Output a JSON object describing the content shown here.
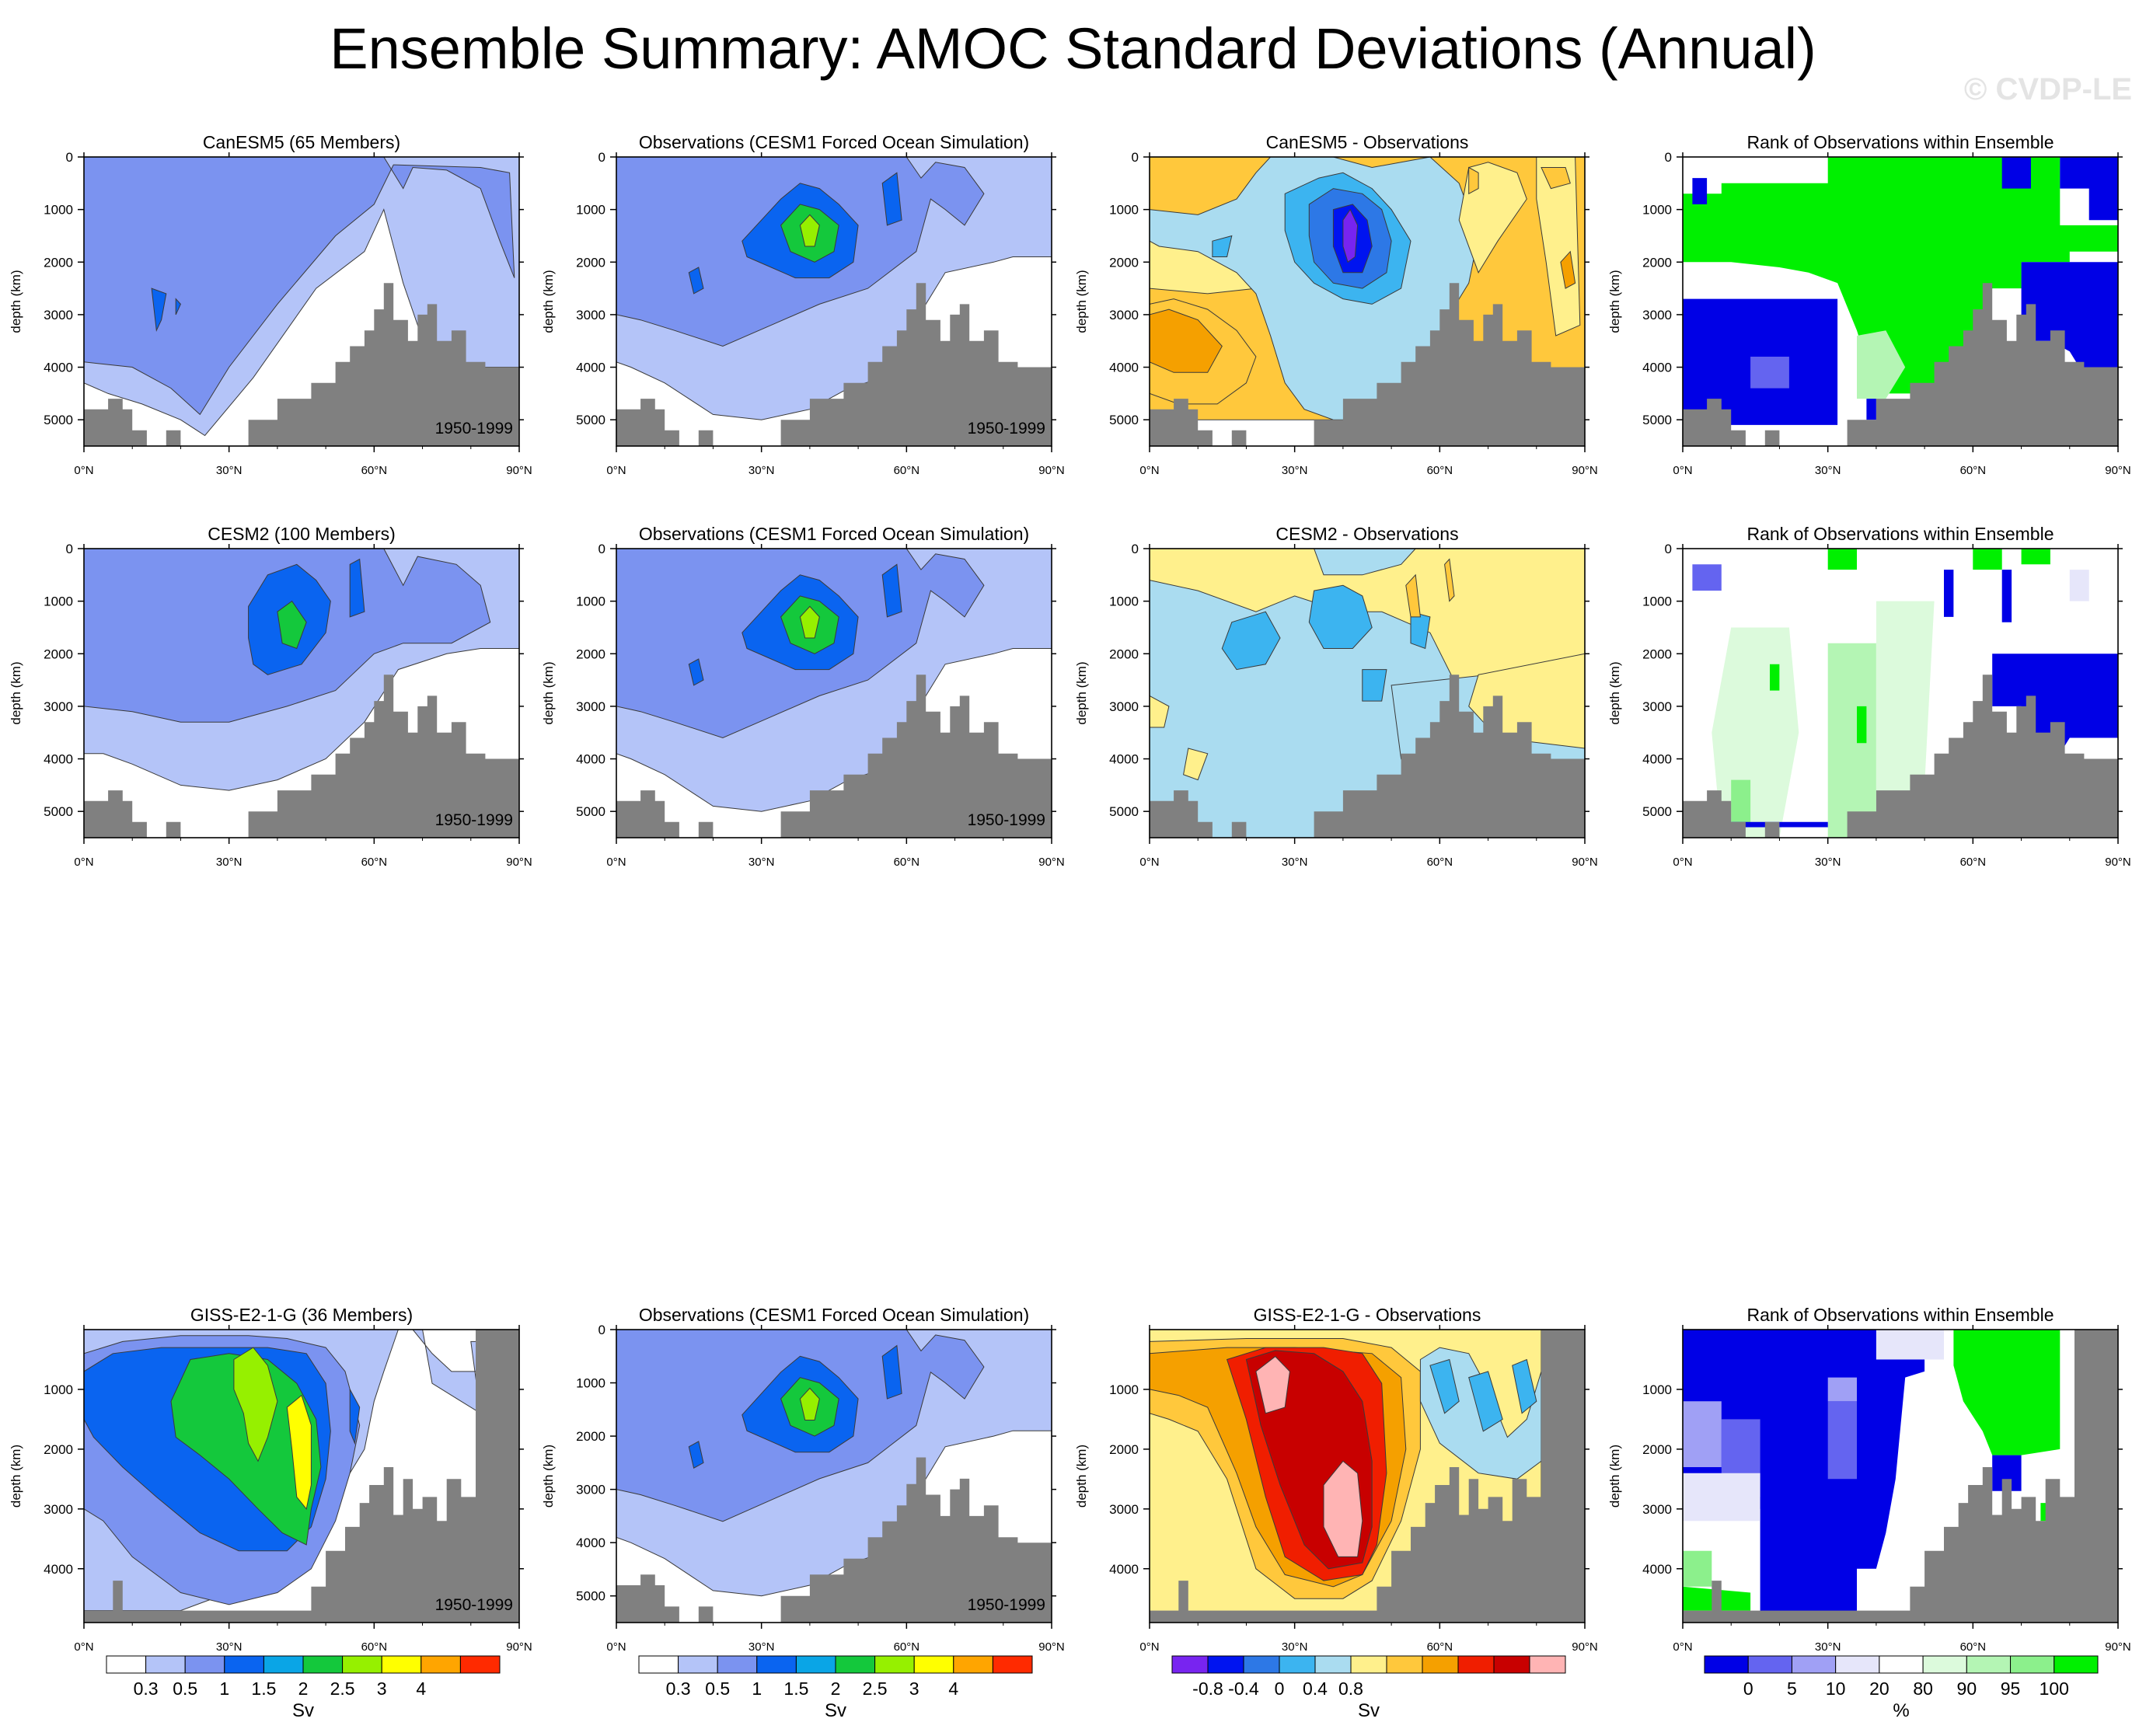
{
  "title": "Ensemble Summary: AMOC Standard Deviations (Annual)",
  "watermark": "© CVDP-LE",
  "axes": {
    "ylabel": "depth (km)",
    "x_range": [
      0,
      90
    ],
    "y_range_deep": [
      0,
      5500
    ],
    "y_range_giss": [
      0,
      4900
    ],
    "x_ticks": [
      0,
      30,
      60,
      90
    ],
    "x_tick_labels": [
      "0°N",
      "30°N",
      "60°N",
      "90°N"
    ],
    "y_ticks_deep": [
      0,
      1000,
      2000,
      3000,
      4000,
      5000
    ],
    "y_tick_labels_deep": [
      "0",
      "1000",
      "2000",
      "3000",
      "4000",
      "5000"
    ],
    "y_ticks_giss": [
      1000,
      2000,
      3000,
      4000
    ],
    "y_tick_labels_giss": [
      "1000",
      "2000",
      "3000",
      "4000"
    ]
  },
  "colors": {
    "sd": [
      "#ffffff",
      "#b4c4f8",
      "#7b93f0",
      "#0a64f0",
      "#0aa5e6",
      "#14c83c",
      "#96f000",
      "#ffff00",
      "#ffa500",
      "#ff2a00"
    ],
    "diff": [
      "#7824f0",
      "#0014f0",
      "#2d78e6",
      "#3cb4f0",
      "#aadcf0",
      "#fff08c",
      "#ffc83c",
      "#f5a000",
      "#f01e00",
      "#c80000",
      "#ffb4b4"
    ],
    "rank": [
      "#0000e6",
      "#6464f0",
      "#a0a0f5",
      "#e6e6fa",
      "#ffffff",
      "#dcfadc",
      "#b4f5b4",
      "#8cf08c",
      "#00f000"
    ],
    "topography": "#808080"
  },
  "chart_data": [
    {
      "type": "heatmap",
      "panel": "r1c1",
      "title": "CanESM5 (65 Members)",
      "period": "1950-1999",
      "variable": "AMOC standard deviation",
      "units": "Sv",
      "xlabel": "",
      "ylabel": "depth (km)",
      "xlim": [
        0,
        90
      ],
      "ylim": [
        5500,
        0
      ]
    },
    {
      "type": "heatmap",
      "panel": "r1c2",
      "title": "Observations (CESM1 Forced Ocean Simulation)",
      "period": "1950-1999",
      "units": "Sv",
      "ylabel": "depth (km)",
      "xlim": [
        0,
        90
      ],
      "ylim": [
        5500,
        0
      ]
    },
    {
      "type": "heatmap",
      "panel": "r1c3",
      "title": "CanESM5 - Observations",
      "units": "Sv",
      "ylabel": "depth (km)",
      "xlim": [
        0,
        90
      ],
      "ylim": [
        5500,
        0
      ]
    },
    {
      "type": "heatmap",
      "panel": "r1c4",
      "title": "Rank of Observations within Ensemble",
      "units": "%",
      "ylabel": "depth (km)",
      "xlim": [
        0,
        90
      ],
      "ylim": [
        5500,
        0
      ]
    },
    {
      "type": "heatmap",
      "panel": "r2c1",
      "title": "CESM2 (100 Members)",
      "period": "1950-1999",
      "units": "Sv",
      "ylabel": "depth (km)",
      "xlim": [
        0,
        90
      ],
      "ylim": [
        5500,
        0
      ]
    },
    {
      "type": "heatmap",
      "panel": "r2c2",
      "title": "Observations (CESM1 Forced Ocean Simulation)",
      "period": "1950-1999",
      "units": "Sv",
      "ylabel": "depth (km)",
      "xlim": [
        0,
        90
      ],
      "ylim": [
        5500,
        0
      ]
    },
    {
      "type": "heatmap",
      "panel": "r2c3",
      "title": "CESM2 - Observations",
      "units": "Sv",
      "ylabel": "depth (km)",
      "xlim": [
        0,
        90
      ],
      "ylim": [
        5500,
        0
      ]
    },
    {
      "type": "heatmap",
      "panel": "r2c4",
      "title": "Rank of Observations within Ensemble",
      "units": "%",
      "ylabel": "depth (km)",
      "xlim": [
        0,
        90
      ],
      "ylim": [
        5500,
        0
      ]
    },
    {
      "type": "heatmap",
      "panel": "r3c1",
      "title": "GISS-E2-1-G (36 Members)",
      "period": "1950-1999",
      "units": "Sv",
      "ylabel": "depth (km)",
      "xlim": [
        0,
        90
      ],
      "ylim": [
        4900,
        0
      ]
    },
    {
      "type": "heatmap",
      "panel": "r3c2",
      "title": "Observations (CESM1 Forced Ocean Simulation)",
      "period": "1950-1999",
      "units": "Sv",
      "ylabel": "depth (km)",
      "xlim": [
        0,
        90
      ],
      "ylim": [
        5500,
        0
      ]
    },
    {
      "type": "heatmap",
      "panel": "r3c3",
      "title": "GISS-E2-1-G - Observations",
      "units": "Sv",
      "ylabel": "depth (km)",
      "xlim": [
        0,
        90
      ],
      "ylim": [
        4900,
        0
      ]
    },
    {
      "type": "heatmap",
      "panel": "r3c4",
      "title": "Rank of Observations within Ensemble",
      "units": "%",
      "ylabel": "depth (km)",
      "xlim": [
        0,
        90
      ],
      "ylim": [
        4900,
        0
      ]
    }
  ],
  "colorbars": [
    {
      "name": "sd-colorbar-1",
      "units": "Sv",
      "levels": [
        0.3,
        0.5,
        1,
        1.5,
        2,
        2.5,
        3,
        4
      ],
      "labels": [
        "0.3",
        "0.5",
        "1",
        "1.5",
        "2",
        "2.5",
        "3",
        "4"
      ],
      "palette": "sd"
    },
    {
      "name": "sd-colorbar-2",
      "units": "Sv",
      "levels": [
        0.3,
        0.5,
        1,
        1.5,
        2,
        2.5,
        3,
        4
      ],
      "labels": [
        "0.3",
        "0.5",
        "1",
        "1.5",
        "2",
        "2.5",
        "3",
        "4"
      ],
      "palette": "sd"
    },
    {
      "name": "diff-colorbar",
      "units": "Sv",
      "levels": [
        -0.8,
        -0.4,
        0,
        0.4,
        0.8
      ],
      "labels": [
        "-0.8",
        "-0.4",
        "0",
        "0.4",
        "0.8"
      ],
      "palette": "diff"
    },
    {
      "name": "rank-colorbar",
      "units": "%",
      "levels": [
        0,
        5,
        10,
        20,
        80,
        90,
        95,
        100
      ],
      "labels": [
        "0",
        "5",
        "10",
        "20",
        "80",
        "90",
        "95",
        "100"
      ],
      "palette": "rank"
    }
  ]
}
